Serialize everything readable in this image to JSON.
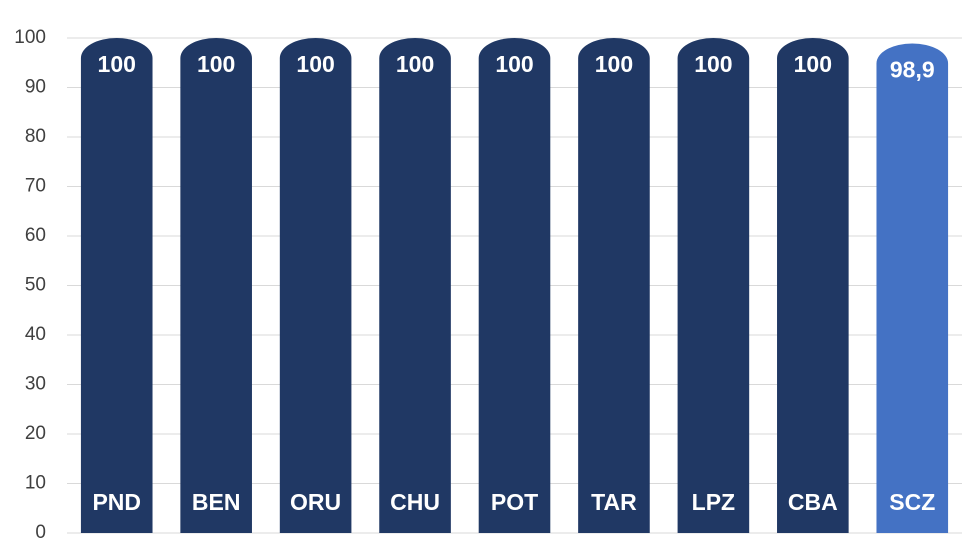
{
  "chart_data": {
    "type": "bar",
    "categories": [
      "PND",
      "BEN",
      "ORU",
      "CHU",
      "POT",
      "TAR",
      "LPZ",
      "CBA",
      "SCZ"
    ],
    "values": [
      100,
      100,
      100,
      100,
      100,
      100,
      100,
      100,
      98.9
    ],
    "value_labels": [
      "100",
      "100",
      "100",
      "100",
      "100",
      "100",
      "100",
      "100",
      "98,9"
    ],
    "colors": [
      "#203864",
      "#203864",
      "#203864",
      "#203864",
      "#203864",
      "#203864",
      "#203864",
      "#203864",
      "#4472c4"
    ],
    "ylim": [
      0,
      100
    ],
    "yticks": [
      0,
      10,
      20,
      30,
      40,
      50,
      60,
      70,
      80,
      90,
      100
    ],
    "grid": true
  }
}
